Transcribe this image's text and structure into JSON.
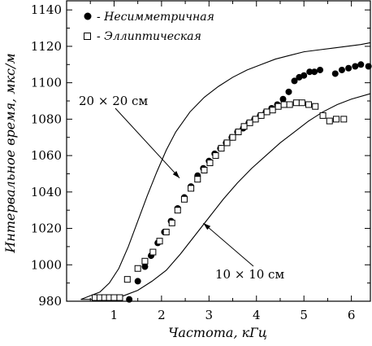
{
  "chart_data": {
    "type": "scatter",
    "xlabel": "Частота, кГц",
    "ylabel": "Интервальное время, мкс/м",
    "xlim": [
      0,
      6.4
    ],
    "ylim": [
      980,
      1145
    ],
    "xticks": [
      1,
      2,
      3,
      4,
      5,
      6
    ],
    "yticks": [
      980,
      1000,
      1020,
      1040,
      1060,
      1080,
      1100,
      1120,
      1140
    ],
    "grid": false,
    "legend_position": "top-left",
    "series": [
      {
        "name": "- Несимметричная",
        "marker": "filled-circle",
        "x": [
          1.32,
          1.5,
          1.65,
          1.78,
          1.92,
          2.06,
          2.2,
          2.34,
          2.48,
          2.62,
          2.76,
          2.88,
          3.0,
          3.12,
          3.24,
          3.36,
          3.48,
          3.6,
          3.72,
          3.84,
          3.96,
          4.08,
          4.2,
          4.32,
          4.44,
          4.56,
          4.68,
          4.8,
          4.9,
          5.0,
          5.12,
          5.22,
          5.34,
          5.66,
          5.8,
          5.94,
          6.08,
          6.2,
          6.36
        ],
        "y": [
          981,
          991,
          999,
          1005,
          1012,
          1018,
          1024,
          1031,
          1037,
          1043,
          1049,
          1053,
          1057,
          1061,
          1064,
          1067,
          1070,
          1073,
          1075,
          1078,
          1080,
          1082,
          1084,
          1086,
          1088,
          1091,
          1095,
          1101,
          1103,
          1104,
          1106,
          1106,
          1107,
          1105,
          1107,
          1108,
          1109,
          1110,
          1109
        ]
      },
      {
        "name": "- Эллиптическая",
        "marker": "open-square",
        "x": [
          0.6,
          0.7,
          0.8,
          0.9,
          1.0,
          1.12,
          1.28,
          1.5,
          1.65,
          1.82,
          1.96,
          2.1,
          2.22,
          2.34,
          2.48,
          2.62,
          2.76,
          2.9,
          3.02,
          3.14,
          3.26,
          3.38,
          3.5,
          3.62,
          3.74,
          3.86,
          3.98,
          4.1,
          4.22,
          4.34,
          4.46,
          4.58,
          4.7,
          4.84,
          4.96,
          5.1,
          5.24,
          5.4,
          5.54,
          5.68,
          5.84
        ],
        "y": [
          982,
          982,
          982,
          982,
          982,
          982,
          992,
          998,
          1002,
          1007,
          1013,
          1018,
          1023,
          1030,
          1036,
          1042,
          1047,
          1052,
          1056,
          1060,
          1064,
          1067,
          1070,
          1073,
          1076,
          1078,
          1080,
          1082,
          1084,
          1085,
          1087,
          1088,
          1088,
          1089,
          1089,
          1088,
          1087,
          1082,
          1079,
          1080,
          1080
        ]
      },
      {
        "name": "20 × 20 см",
        "marker": "line",
        "x": [
          0.3,
          0.5,
          0.7,
          0.9,
          1.1,
          1.3,
          1.5,
          1.7,
          1.9,
          2.1,
          2.3,
          2.6,
          2.9,
          3.2,
          3.5,
          3.8,
          4.1,
          4.4,
          4.7,
          5.0,
          5.3,
          5.6,
          5.9,
          6.2,
          6.4
        ],
        "y": [
          981,
          983,
          985,
          990,
          998,
          1010,
          1024,
          1038,
          1051,
          1063,
          1073,
          1084,
          1092,
          1098,
          1103,
          1107,
          1110,
          1113,
          1115,
          1117,
          1118,
          1119,
          1120,
          1121,
          1122
        ]
      },
      {
        "name": "10 × 10 см",
        "marker": "line",
        "x": [
          0.3,
          0.6,
          0.9,
          1.2,
          1.5,
          1.8,
          2.1,
          2.4,
          2.7,
          3.0,
          3.3,
          3.6,
          3.9,
          4.2,
          4.5,
          4.8,
          5.1,
          5.4,
          5.7,
          6.0,
          6.4
        ],
        "y": [
          981,
          981,
          982,
          983,
          986,
          991,
          997,
          1006,
          1016,
          1026,
          1036,
          1045,
          1053,
          1060,
          1067,
          1073,
          1079,
          1084,
          1088,
          1091,
          1094
        ]
      }
    ],
    "annotations": [
      {
        "text": "20 × 20 см",
        "points_to": [
          2.38,
          1049
        ]
      },
      {
        "text": "10 × 10 см",
        "points_to": [
          2.95,
          1026
        ]
      }
    ]
  }
}
